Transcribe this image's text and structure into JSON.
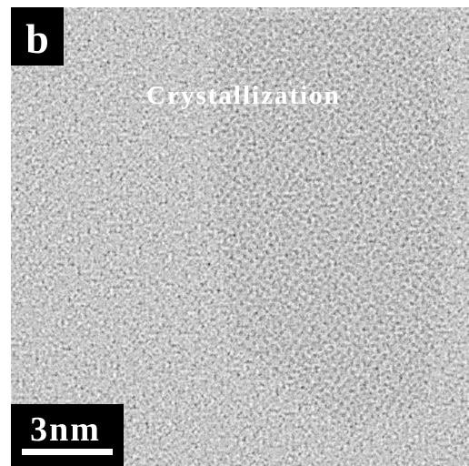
{
  "panel_label": "b",
  "annotation": "Crystallization",
  "scale_bar": {
    "label": "3nm"
  }
}
